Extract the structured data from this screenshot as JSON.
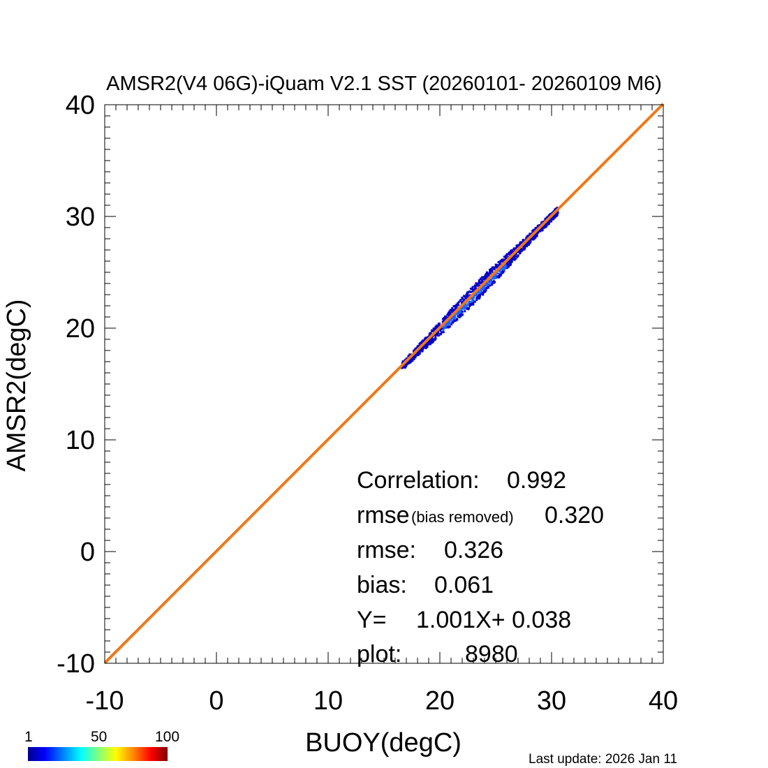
{
  "chart_data": {
    "type": "scatter",
    "title": "AMSR2(V4 06G)-iQuam V2.1 SST (20260101- 20260109 M6)",
    "xlabel": "BUOY(degC)",
    "ylabel": "AMSR2(degC)",
    "xlim": [
      -10,
      40
    ],
    "ylim": [
      -10,
      40
    ],
    "x_ticks": [
      "-10",
      "0",
      "10",
      "20",
      "30",
      "40"
    ],
    "y_ticks": [
      "-10",
      "0",
      "10",
      "20",
      "30",
      "40"
    ],
    "density_cloud": {
      "x_range": [
        15.5,
        30.5
      ],
      "y_range": [
        15.5,
        30.5
      ],
      "description_points": [
        [
          17.0,
          17.2
        ],
        [
          19.0,
          19.3
        ],
        [
          21.0,
          21.2
        ],
        [
          22.5,
          22.8
        ],
        [
          24.0,
          24.2
        ],
        [
          25.5,
          25.7
        ],
        [
          27.0,
          27.1
        ],
        [
          28.5,
          28.8
        ],
        [
          30.0,
          30.1
        ]
      ]
    },
    "fit_line": {
      "slope": 1.001,
      "intercept": 0.038,
      "color": "#f07818"
    },
    "colorbar": {
      "min_label": "1",
      "mid_label": "50",
      "max_label": "100"
    },
    "stats": [
      {
        "label": "Correlation:",
        "value": "0.992"
      },
      {
        "label": "rmse",
        "sub": "(bias removed)",
        "value": "0.320"
      },
      {
        "label": "rmse:",
        "value": "0.326"
      },
      {
        "label": "bias:",
        "value": "0.061"
      },
      {
        "label": "Y=",
        "value": "1.001X+  0.038"
      },
      {
        "label": "plot:",
        "value": "8980"
      }
    ]
  },
  "footer": "Last update: 2026 Jan 11",
  "colors": {
    "fit_line": "#f07818",
    "scatter_low": "#0000c8",
    "scatter_mid": "#1e64ff"
  }
}
